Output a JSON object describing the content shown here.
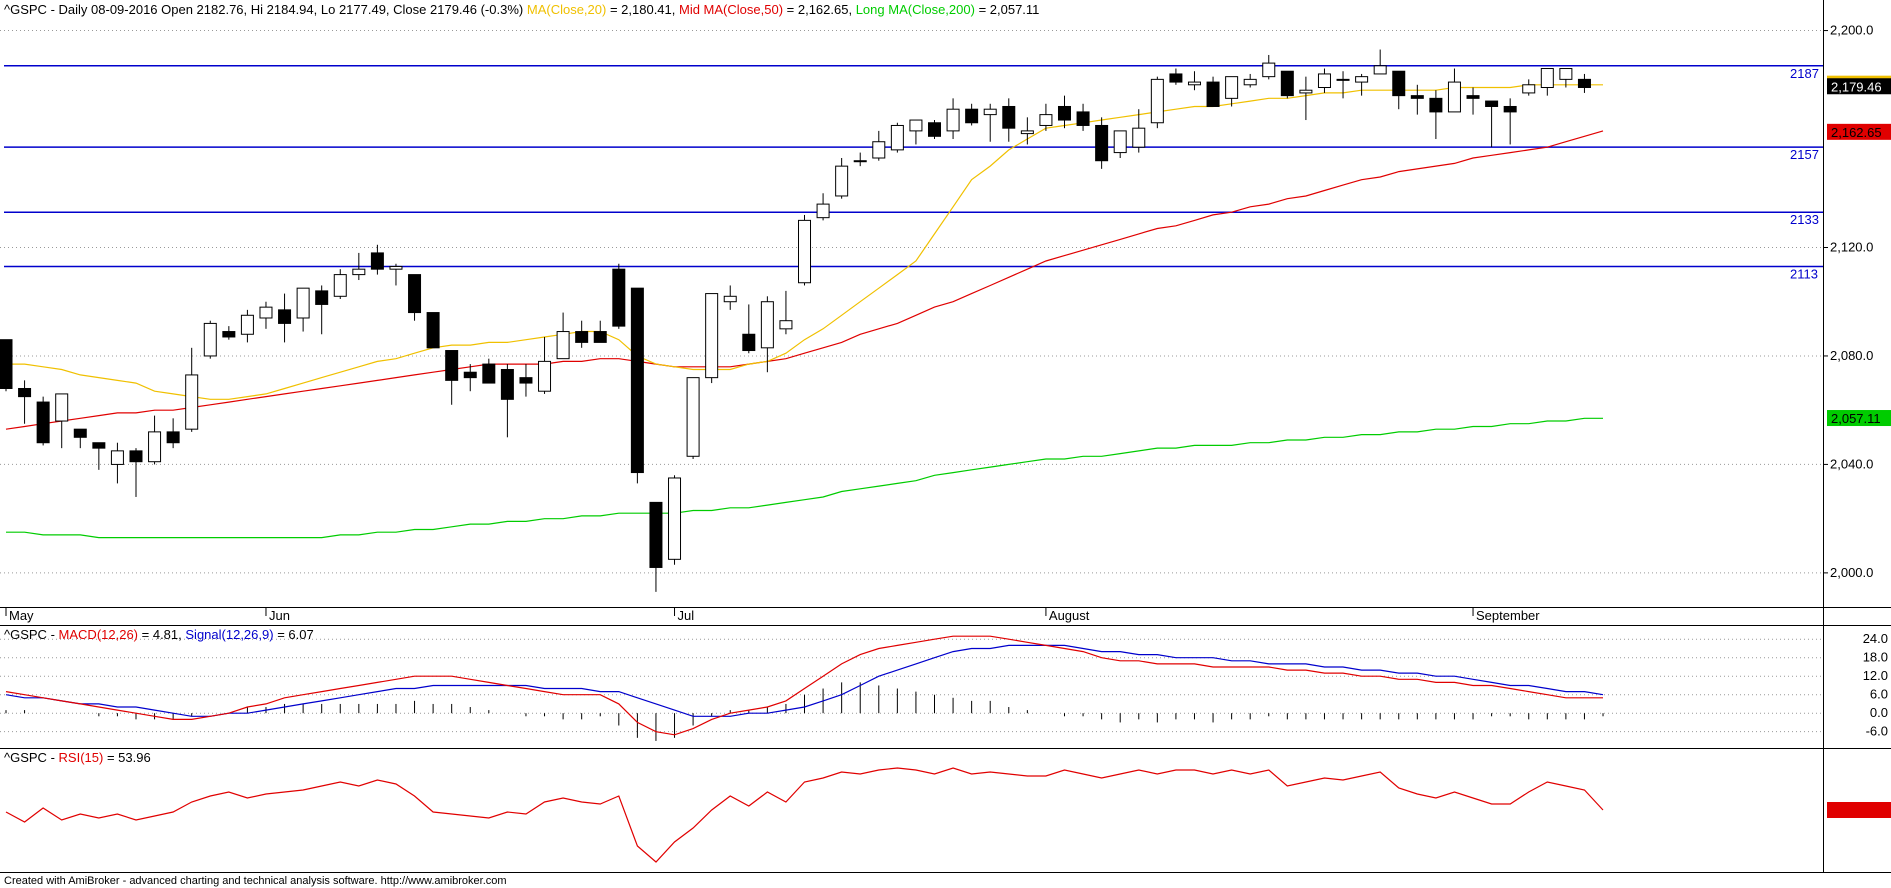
{
  "header": {
    "symbol": "^GSPC",
    "main_info": "- Daily 08-09-2016 Open 2182.76, Hi 2184.94, Lo 2177.49, Close 2179.46 (-0.3%)",
    "ma_label": "MA(Close,20)",
    "ma_value": "= 2,180.41,",
    "mid_label": "Mid MA(Close,50)",
    "mid_value": "= 2,162.65,",
    "long_label": "Long MA(Close,200)",
    "long_value": "= 2,057.11"
  },
  "macd_header": {
    "symbol": "^GSPC",
    "dash": "-",
    "macd_label": "MACD(12,26)",
    "macd_value": "= 4.81,",
    "signal_label": "Signal(12,26,9)",
    "signal_value": "= 6.07"
  },
  "rsi_header": {
    "symbol": "^GSPC",
    "dash": "-",
    "rsi_label": "RSI(15)",
    "rsi_value": "= 53.96"
  },
  "footer": "Created with AmiBroker - advanced charting and technical analysis software. http://www.amibroker.com",
  "colors": {
    "ma20": "#f0c000",
    "ma50": "#e00000",
    "ma200": "#00cc00",
    "macd": "#e00000",
    "signal": "#0000cc",
    "rsi": "#e00000",
    "hline": "#0000cc"
  },
  "chart_data": [
    {
      "type": "candlestick",
      "ylim": [
        1990,
        2205
      ],
      "y_ticks": [
        {
          "value": 2000,
          "label": "2,000.0"
        },
        {
          "value": 2040,
          "label": "2,040.0"
        },
        {
          "value": 2080,
          "label": "2,080.0"
        },
        {
          "value": 2120,
          "label": "2,120.0"
        },
        {
          "value": 2200,
          "label": "2,200.0"
        }
      ],
      "month_labels": [
        {
          "index": 0,
          "label": "May"
        },
        {
          "index": 14,
          "label": "Jun"
        },
        {
          "index": 36,
          "label": "Jul"
        },
        {
          "index": 56,
          "label": "August"
        },
        {
          "index": 79,
          "label": "September"
        }
      ],
      "horizontal_lines": [
        {
          "value": 2187,
          "label": "2187"
        },
        {
          "value": 2157,
          "label": "2157"
        },
        {
          "value": 2133,
          "label": "2133"
        },
        {
          "value": 2113,
          "label": "2113"
        }
      ],
      "last_value_tags": [
        {
          "value": 2180.41,
          "label": "2,180.41",
          "bg": "#f0c000",
          "fg": "#000000"
        },
        {
          "value": 2179.46,
          "label": "2,179.46",
          "bg": "#000000",
          "fg": "#ffffff"
        },
        {
          "value": 2162.65,
          "label": "2,162.65",
          "bg": "#e00000",
          "fg": "#000000"
        },
        {
          "value": 2057.11,
          "label": "2,057.11",
          "bg": "#00cc00",
          "fg": "#000000"
        }
      ],
      "candles": [
        [
          2086,
          2086,
          2067,
          2068
        ],
        [
          2068,
          2071,
          2055,
          2065
        ],
        [
          2063,
          2065,
          2047,
          2048
        ],
        [
          2056,
          2066,
          2046,
          2066
        ],
        [
          2053,
          2053,
          2046,
          2050
        ],
        [
          2048,
          2048,
          2038,
          2046
        ],
        [
          2040,
          2048,
          2033,
          2045
        ],
        [
          2045,
          2046,
          2028,
          2041
        ],
        [
          2041,
          2058,
          2040,
          2052
        ],
        [
          2052,
          2057,
          2046,
          2048
        ],
        [
          2053,
          2083,
          2052,
          2073
        ],
        [
          2080,
          2093,
          2079,
          2092
        ],
        [
          2089,
          2091,
          2086,
          2087
        ],
        [
          2088,
          2097,
          2085,
          2095
        ],
        [
          2094,
          2100,
          2090,
          2098
        ],
        [
          2097,
          2103,
          2085,
          2092
        ],
        [
          2094,
          2104,
          2089,
          2105
        ],
        [
          2104,
          2106,
          2088,
          2099
        ],
        [
          2102,
          2112,
          2101,
          2110
        ],
        [
          2110,
          2118,
          2108,
          2112
        ],
        [
          2118,
          2121,
          2110,
          2112
        ],
        [
          2112,
          2114,
          2106,
          2113
        ],
        [
          2110,
          2110,
          2093,
          2096
        ],
        [
          2096,
          2096,
          2083,
          2083
        ],
        [
          2082,
          2082,
          2062,
          2071
        ],
        [
          2074,
          2077,
          2067,
          2072
        ],
        [
          2077,
          2079,
          2071,
          2070
        ],
        [
          2075,
          2077,
          2050,
          2064
        ],
        [
          2072,
          2077,
          2065,
          2070
        ],
        [
          2067,
          2087,
          2066,
          2078
        ],
        [
          2079,
          2096,
          2079,
          2089
        ],
        [
          2089,
          2093,
          2083,
          2085
        ],
        [
          2089,
          2093,
          2085,
          2085
        ],
        [
          2112,
          2114,
          2090,
          2091
        ],
        [
          2105,
          2105,
          2033,
          2037
        ],
        [
          2026,
          2026,
          1993,
          2002
        ],
        [
          2005,
          2036,
          2003,
          2035
        ],
        [
          2043,
          2072,
          2042,
          2072
        ],
        [
          2072,
          2103,
          2070,
          2103
        ],
        [
          2100,
          2106,
          2097,
          2102
        ],
        [
          2088,
          2099,
          2081,
          2082
        ],
        [
          2083,
          2102,
          2074,
          2100
        ],
        [
          2090,
          2104,
          2088,
          2093
        ],
        [
          2107,
          2132,
          2106,
          2130
        ],
        [
          2131,
          2140,
          2130,
          2136
        ],
        [
          2139,
          2153,
          2138,
          2150
        ],
        [
          2152,
          2155,
          2150,
          2152
        ],
        [
          2153,
          2163,
          2152,
          2159
        ],
        [
          2156,
          2166,
          2155,
          2165
        ],
        [
          2163,
          2166,
          2158,
          2167
        ],
        [
          2166,
          2167,
          2160,
          2161
        ],
        [
          2163,
          2175,
          2160,
          2171
        ],
        [
          2171,
          2173,
          2165,
          2166
        ],
        [
          2169,
          2173,
          2159,
          2171
        ],
        [
          2172,
          2175,
          2159,
          2164
        ],
        [
          2162,
          2168,
          2158,
          2163
        ],
        [
          2165,
          2173,
          2163,
          2169
        ],
        [
          2172,
          2176,
          2164,
          2167
        ],
        [
          2170,
          2173,
          2163,
          2165
        ],
        [
          2165,
          2168,
          2149,
          2152
        ],
        [
          2155,
          2161,
          2153,
          2163
        ],
        [
          2157,
          2171,
          2155,
          2164
        ],
        [
          2166,
          2183,
          2164,
          2182
        ],
        [
          2184,
          2186,
          2180,
          2181
        ],
        [
          2180,
          2185,
          2178,
          2181
        ],
        [
          2181,
          2183,
          2172,
          2172
        ],
        [
          2175,
          2183,
          2172,
          2183
        ],
        [
          2180,
          2184,
          2179,
          2182
        ],
        [
          2183,
          2191,
          2182,
          2188
        ],
        [
          2185,
          2185,
          2175,
          2176
        ],
        [
          2177,
          2183,
          2167,
          2178
        ],
        [
          2179,
          2186,
          2177,
          2184
        ],
        [
          2182,
          2185,
          2175,
          2182
        ],
        [
          2181,
          2184,
          2176,
          2183
        ],
        [
          2184,
          2193,
          2184,
          2187
        ],
        [
          2185,
          2185,
          2171,
          2176
        ],
        [
          2176,
          2180,
          2169,
          2175
        ],
        [
          2175,
          2178,
          2160,
          2170
        ],
        [
          2170,
          2186,
          2170,
          2181
        ],
        [
          2176,
          2179,
          2169,
          2175
        ],
        [
          2174,
          2174,
          2157,
          2172
        ],
        [
          2172,
          2175,
          2158,
          2170
        ],
        [
          2177,
          2182,
          2176,
          2180
        ],
        [
          2179,
          2186,
          2176,
          2186
        ],
        [
          2182,
          2186,
          2179,
          2186
        ],
        [
          2182,
          2184,
          2177,
          2179
        ]
      ],
      "ma20": [
        2077,
        2077,
        2076,
        2075,
        2073,
        2072,
        2071,
        2070,
        2067,
        2066,
        2065,
        2064,
        2064,
        2065,
        2066,
        2068,
        2070,
        2072,
        2074,
        2076,
        2078,
        2079,
        2081,
        2083,
        2084,
        2084,
        2085,
        2085,
        2086,
        2087,
        2088,
        2089,
        2089,
        2086,
        2080,
        2077,
        2076,
        2075,
        2075,
        2075,
        2077,
        2078,
        2081,
        2086,
        2090,
        2095,
        2100,
        2105,
        2110,
        2115,
        2125,
        2135,
        2145,
        2150,
        2156,
        2160,
        2164,
        2165,
        2166,
        2167,
        2168,
        2169,
        2170,
        2171,
        2172,
        2172,
        2173,
        2174,
        2175,
        2175,
        2176,
        2177,
        2177,
        2178,
        2178,
        2178,
        2178,
        2178,
        2179,
        2179,
        2179,
        2179,
        2180,
        2180,
        2180,
        2180,
        2180
      ],
      "ma50": [
        2053,
        2054,
        2055,
        2056,
        2057,
        2058,
        2059,
        2059,
        2060,
        2060,
        2061,
        2062,
        2063,
        2064,
        2065,
        2066,
        2067,
        2068,
        2069,
        2070,
        2071,
        2072,
        2073,
        2074,
        2075,
        2076,
        2077,
        2077,
        2077,
        2077,
        2078,
        2078,
        2079,
        2079,
        2078,
        2077,
        2076,
        2076,
        2076,
        2076,
        2077,
        2078,
        2079,
        2081,
        2083,
        2085,
        2088,
        2090,
        2092,
        2095,
        2098,
        2100,
        2103,
        2106,
        2109,
        2112,
        2115,
        2117,
        2119,
        2121,
        2123,
        2125,
        2127,
        2128,
        2130,
        2132,
        2133,
        2135,
        2136,
        2138,
        2139,
        2141,
        2143,
        2145,
        2146,
        2148,
        2149,
        2150,
        2151,
        2153,
        2154,
        2155,
        2156,
        2157,
        2159,
        2161,
        2163
      ],
      "ma200": [
        2015,
        2015,
        2014,
        2014,
        2014,
        2013,
        2013,
        2013,
        2013,
        2013,
        2013,
        2013,
        2013,
        2013,
        2013,
        2013,
        2013,
        2013,
        2014,
        2014,
        2015,
        2015,
        2016,
        2016,
        2017,
        2018,
        2018,
        2019,
        2019,
        2020,
        2020,
        2021,
        2021,
        2022,
        2022,
        2022,
        2022,
        2023,
        2023,
        2024,
        2024,
        2025,
        2026,
        2027,
        2028,
        2030,
        2031,
        2032,
        2033,
        2034,
        2036,
        2037,
        2038,
        2039,
        2040,
        2041,
        2042,
        2042,
        2043,
        2043,
        2044,
        2045,
        2046,
        2046,
        2047,
        2047,
        2047,
        2048,
        2048,
        2049,
        2049,
        2050,
        2050,
        2051,
        2051,
        2052,
        2052,
        2053,
        2053,
        2054,
        2054,
        2055,
        2055,
        2056,
        2056,
        2057,
        2057
      ]
    },
    {
      "type": "line",
      "ylim": [
        -10,
        27
      ],
      "y_ticks": [
        {
          "value": 24,
          "label": "24.0"
        },
        {
          "value": 18,
          "label": "18.0"
        },
        {
          "value": 12,
          "label": "12.0"
        },
        {
          "value": 6,
          "label": "6.0"
        },
        {
          "value": 0,
          "label": "0.0"
        },
        {
          "value": -6,
          "label": "-6.0"
        }
      ],
      "macd": [
        7,
        6,
        5,
        4,
        3,
        2,
        1,
        0,
        -1,
        -2,
        -2,
        -1,
        0,
        2,
        3,
        5,
        6,
        7,
        8,
        9,
        10,
        11,
        12,
        12,
        12,
        11,
        10,
        9,
        8,
        7,
        6,
        6,
        6,
        3,
        -3,
        -6,
        -7,
        -5,
        -2,
        0,
        1,
        2,
        4,
        8,
        12,
        16,
        19,
        21,
        22,
        23,
        24,
        25,
        25,
        25,
        24,
        23,
        22,
        21,
        20,
        18,
        17,
        17,
        16,
        16,
        16,
        15,
        15,
        15,
        15,
        14,
        14,
        13,
        13,
        12,
        12,
        11,
        11,
        10,
        10,
        9,
        9,
        8,
        7,
        6,
        5,
        5,
        5
      ],
      "signal": [
        6,
        5,
        5,
        4,
        3,
        3,
        2,
        2,
        1,
        0,
        -1,
        -1,
        0,
        0,
        1,
        2,
        3,
        4,
        5,
        6,
        7,
        8,
        8,
        9,
        9,
        9,
        9,
        9,
        9,
        8,
        8,
        8,
        7,
        7,
        5,
        3,
        1,
        -1,
        -1,
        -1,
        0,
        0,
        1,
        2,
        4,
        6,
        9,
        12,
        14,
        16,
        18,
        20,
        21,
        21,
        22,
        22,
        22,
        22,
        21,
        20,
        20,
        19,
        19,
        18,
        18,
        18,
        17,
        17,
        16,
        16,
        16,
        15,
        15,
        14,
        14,
        13,
        13,
        12,
        12,
        11,
        10,
        9,
        9,
        8,
        7,
        7,
        6
      ]
    },
    {
      "type": "line",
      "ylim": [
        25,
        82
      ],
      "rsi": [
        53,
        48,
        55,
        49,
        52,
        50,
        52,
        49,
        51,
        53,
        58,
        61,
        63,
        60,
        62,
        63,
        64,
        66,
        68,
        66,
        69,
        67,
        61,
        53,
        52,
        51,
        50,
        53,
        52,
        58,
        60,
        58,
        57,
        61,
        36,
        28,
        38,
        45,
        54,
        61,
        56,
        63,
        58,
        68,
        70,
        73,
        72,
        74,
        75,
        74,
        72,
        75,
        72,
        73,
        72,
        71,
        71,
        74,
        72,
        70,
        72,
        74,
        72,
        74,
        74,
        72,
        74,
        72,
        74,
        66,
        68,
        70,
        69,
        71,
        73,
        65,
        62,
        60,
        63,
        60,
        57,
        57,
        63,
        68,
        66,
        64,
        54
      ]
    }
  ]
}
